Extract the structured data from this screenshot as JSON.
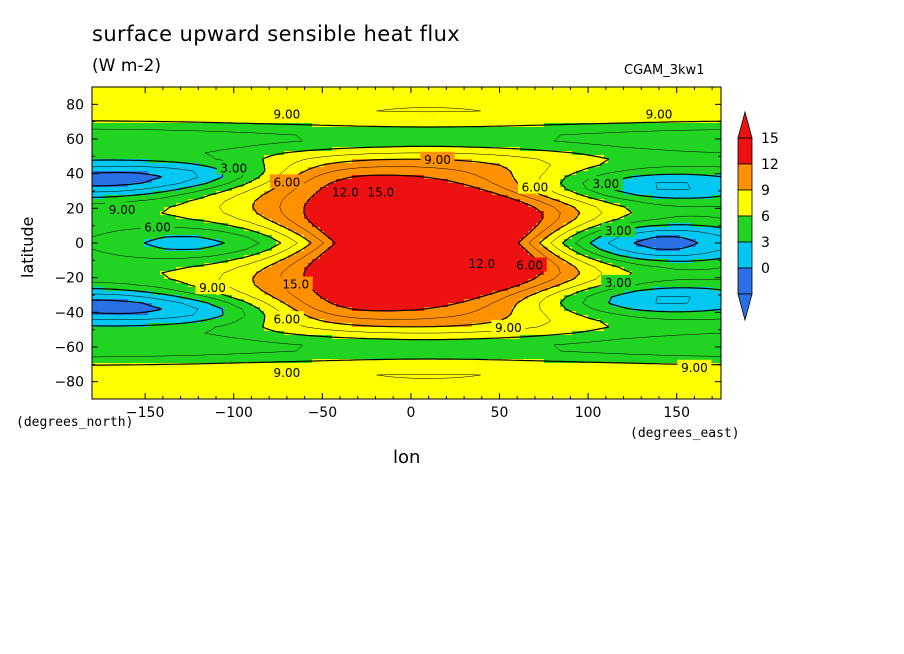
{
  "chart_data": {
    "type": "heatmap",
    "title": "surface upward sensible heat flux",
    "units": "(W m-2)",
    "dataset": "CGAM_3kw1",
    "xlabel": "lon",
    "ylabel": "latitude",
    "x_unit": "(degrees_east)",
    "y_unit": "(degrees_north)",
    "xlim": [
      -180,
      175
    ],
    "ylim": [
      -90,
      90
    ],
    "x_ticks": [
      -150,
      -100,
      -50,
      0,
      50,
      100,
      150
    ],
    "y_ticks": [
      -80,
      -60,
      -40,
      -20,
      0,
      20,
      40,
      60,
      80
    ],
    "colorbar": {
      "levels": [
        0,
        3,
        6,
        9,
        12,
        15
      ],
      "colors": [
        "#2b6fe6",
        "#00c8f0",
        "#22d422",
        "#ffff00",
        "#ff9000",
        "#ee1111"
      ],
      "under_color": "#2b6fe6",
      "over_color": "#ee1111"
    },
    "contour_labels": [
      {
        "text": "9.00",
        "lon": -70,
        "lat": 74
      },
      {
        "text": "9.00",
        "lon": 140,
        "lat": 74
      },
      {
        "text": "9.00",
        "lon": 15,
        "lat": 48
      },
      {
        "text": "3.00",
        "lon": -100,
        "lat": 43
      },
      {
        "text": "6.00",
        "lon": -70,
        "lat": 35
      },
      {
        "text": "12.0",
        "lon": -37,
        "lat": 29
      },
      {
        "text": "15.0",
        "lon": -17,
        "lat": 29
      },
      {
        "text": "6.00",
        "lon": 70,
        "lat": 32
      },
      {
        "text": "3.00",
        "lon": 110,
        "lat": 34
      },
      {
        "text": "9.00",
        "lon": -163,
        "lat": 19
      },
      {
        "text": "6.00",
        "lon": -143,
        "lat": 9
      },
      {
        "text": "3.00",
        "lon": 117,
        "lat": 7
      },
      {
        "text": "12.0",
        "lon": 40,
        "lat": -12
      },
      {
        "text": "6.00",
        "lon": 67,
        "lat": -13
      },
      {
        "text": "9.00",
        "lon": -112,
        "lat": -26
      },
      {
        "text": "15.0",
        "lon": -65,
        "lat": -24
      },
      {
        "text": "3.00",
        "lon": 117,
        "lat": -23
      },
      {
        "text": "6.00",
        "lon": -70,
        "lat": -44
      },
      {
        "text": "9.00",
        "lon": 55,
        "lat": -49
      },
      {
        "text": "9.00",
        "lon": -70,
        "lat": -75
      },
      {
        "text": "9.00",
        "lon": 160,
        "lat": -72
      }
    ]
  }
}
